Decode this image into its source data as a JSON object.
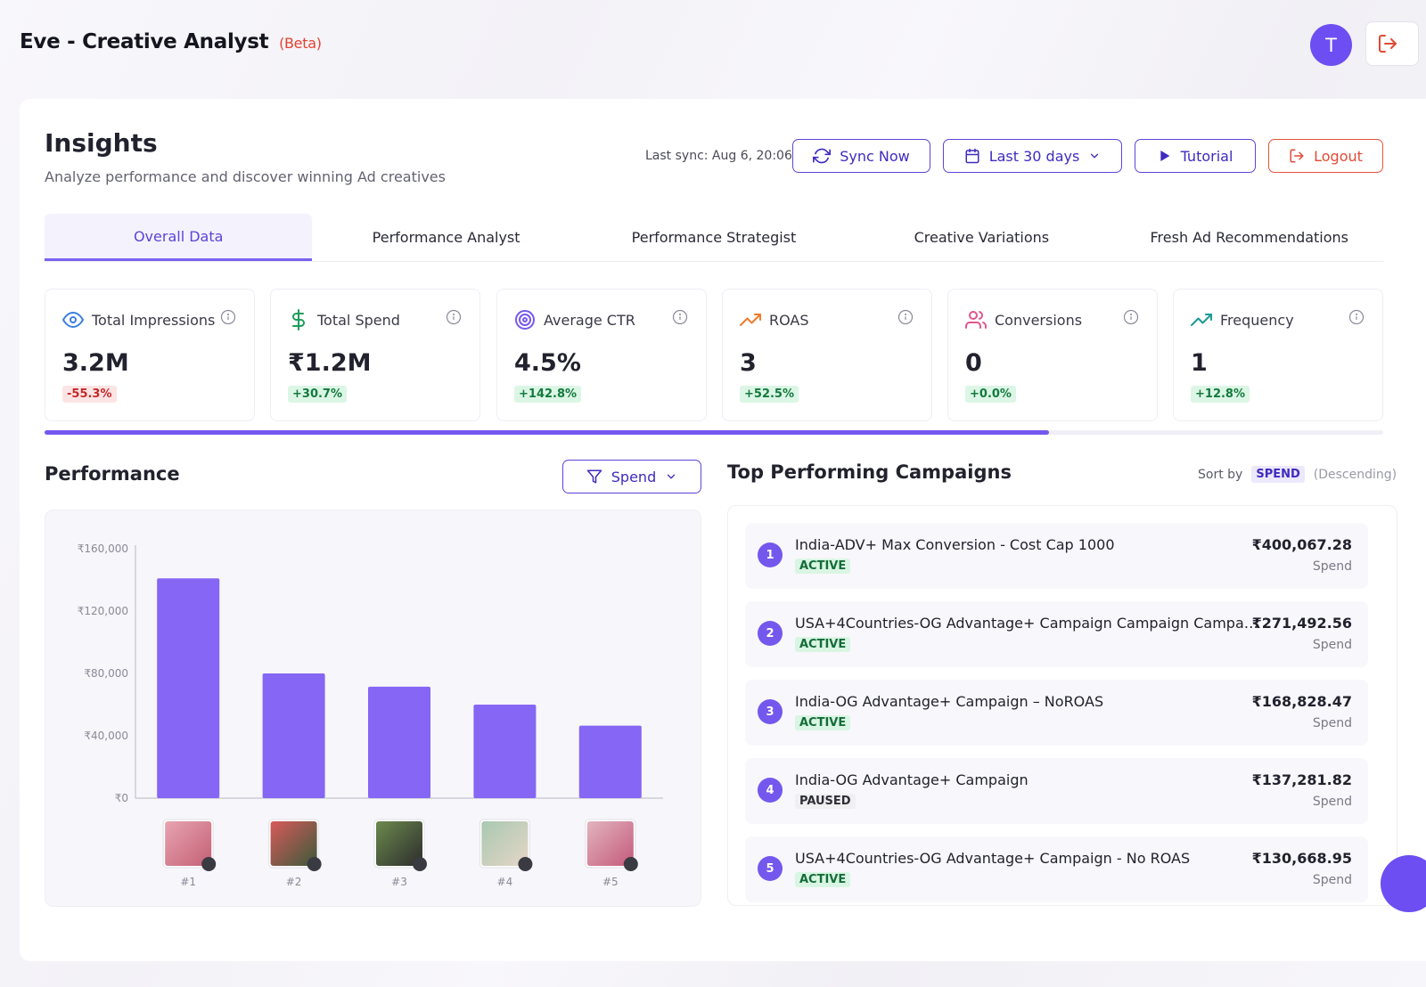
{
  "app": {
    "title": "Eve - Creative Analyst",
    "beta": "(Beta)",
    "avatar_initial": "T"
  },
  "header": {
    "title": "Insights",
    "subtitle": "Analyze performance and discover winning Ad creatives",
    "last_sync": "Last sync: Aug 6, 20:06",
    "sync_label": "Sync Now",
    "range_label": "Last 30 days",
    "tutorial_label": "Tutorial",
    "logout_label": "Logout"
  },
  "tabs": [
    {
      "label": "Overall Data",
      "active": true
    },
    {
      "label": "Performance Analyst",
      "active": false
    },
    {
      "label": "Performance Strategist",
      "active": false
    },
    {
      "label": "Creative Variations",
      "active": false
    },
    {
      "label": "Fresh Ad Recommendations",
      "active": false
    }
  ],
  "metrics": [
    {
      "label": "Total Impressions",
      "value": "3.2M",
      "change": "-55.3%",
      "trend": "neg",
      "icon": "eye-icon",
      "color": "#3b7fe0"
    },
    {
      "label": "Total Spend",
      "value": "₹1.2M",
      "change": "+30.7%",
      "trend": "pos",
      "icon": "dollar-icon",
      "color": "#1f9d5b"
    },
    {
      "label": "Average CTR",
      "value": "4.5%",
      "change": "+142.8%",
      "trend": "pos",
      "icon": "target-icon",
      "color": "#7458ee"
    },
    {
      "label": "ROAS",
      "value": "3",
      "change": "+52.5%",
      "trend": "pos",
      "icon": "trending-up-icon",
      "color": "#f07b2a"
    },
    {
      "label": "Conversions",
      "value": "0",
      "change": "+0.0%",
      "trend": "pos",
      "icon": "users-icon",
      "color": "#e0558f"
    },
    {
      "label": "Frequency",
      "value": "1",
      "change": "+12.8%",
      "trend": "pos",
      "icon": "trending-up-icon",
      "color": "#1a9a94"
    }
  ],
  "tabs_scroll_progress": 0.75,
  "performance": {
    "title": "Performance",
    "metric_label": "Spend"
  },
  "chart_data": {
    "type": "bar",
    "categories": [
      "#1",
      "#2",
      "#3",
      "#4",
      "#5"
    ],
    "values": [
      141000,
      80000,
      71500,
      60000,
      46500
    ],
    "ylim": [
      0,
      160000
    ],
    "yticks": [
      "₹0",
      "₹40,000",
      "₹80,000",
      "₹120,000",
      "₹160,000"
    ],
    "bar_color": "#8566f5",
    "thumbnail_colors": [
      [
        "#e7a4b0",
        "#c46077"
      ],
      [
        "#d85a5a",
        "#3b5a3a"
      ],
      [
        "#6c8a4e",
        "#2c2c2c"
      ],
      [
        "#a8c8b0",
        "#e6d6c8"
      ],
      [
        "#e2b4c0",
        "#c45a7a"
      ]
    ]
  },
  "campaigns": {
    "title": "Top Performing Campaigns",
    "sort_label": "Sort by",
    "sort_field": "SPEND",
    "sort_dir": "(Descending)",
    "items": [
      {
        "rank": "1",
        "name": "India-ADV+ Max Conversion - Cost Cap 1000",
        "status": "ACTIVE",
        "amount": "₹400,067.28",
        "metric": "Spend"
      },
      {
        "rank": "2",
        "name": "USA+4Countries-OG Advantage+ Campaign Campaign Campaign...",
        "status": "ACTIVE",
        "amount": "₹271,492.56",
        "metric": "Spend"
      },
      {
        "rank": "3",
        "name": "India-OG Advantage+ Campaign – NoROAS",
        "status": "ACTIVE",
        "amount": "₹168,828.47",
        "metric": "Spend"
      },
      {
        "rank": "4",
        "name": "India-OG Advantage+ Campaign",
        "status": "PAUSED",
        "amount": "₹137,281.82",
        "metric": "Spend"
      },
      {
        "rank": "5",
        "name": "USA+4Countries-OG Advantage+ Campaign - No ROAS",
        "status": "ACTIVE",
        "amount": "₹130,668.95",
        "metric": "Spend"
      }
    ]
  }
}
